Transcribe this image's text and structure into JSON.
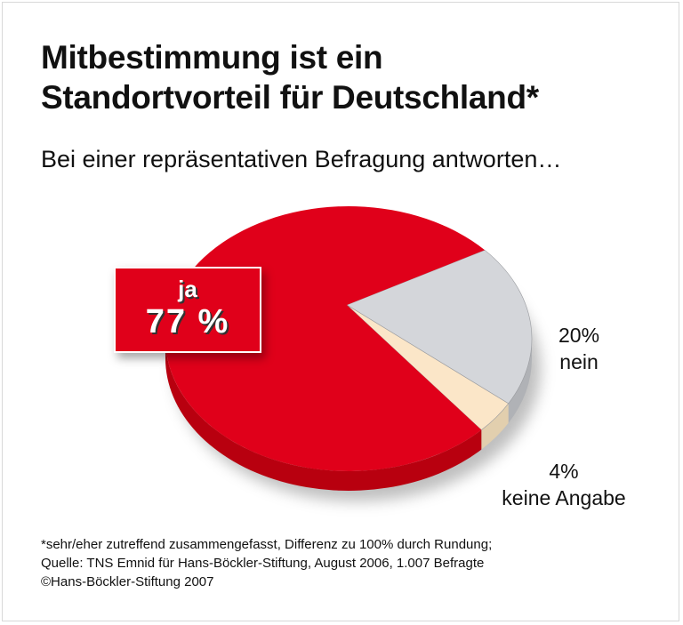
{
  "title_line1": "Mitbestimmung ist ein",
  "title_line2": "Standortvorteil für Deutschland*",
  "subtitle": "Bei einer repräsentativen Befragung antworten…",
  "chart_data": {
    "type": "pie",
    "categories": [
      "ja",
      "nein",
      "keine Angabe"
    ],
    "values": [
      77,
      20,
      4
    ],
    "labels": [
      {
        "name": "ja",
        "value": "77 %"
      },
      {
        "name": "nein",
        "value": "20%"
      },
      {
        "name": "keine Angabe",
        "value": "4%"
      }
    ],
    "colors": [
      "#e0001a",
      "#d4d6da",
      "#fbe6c8"
    ],
    "side_colors": [
      "#b8000f",
      "#b0b2b6",
      "#e2cfae"
    ]
  },
  "footnote": [
    "*sehr/eher zutreffend zusammengefasst, Differenz zu 100% durch Rundung;",
    "Quelle: TNS Emnid für Hans-Böckler-Stiftung, August 2006, 1.007 Befragte",
    "©Hans-Böckler-Stiftung 2007"
  ]
}
